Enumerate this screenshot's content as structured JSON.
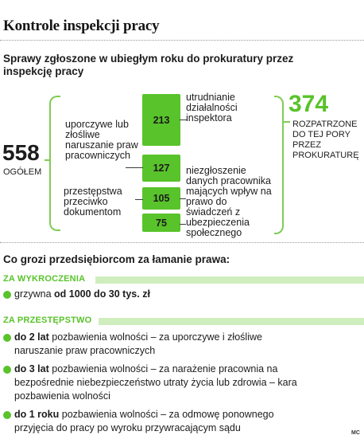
{
  "title": "Kontrole inspekcji pracy",
  "subtitle": "Sprawy zgłoszone w ubiegłym roku do prokuratury przez inspekcję pracy",
  "total": {
    "value": "558",
    "label": "OGÓŁEM"
  },
  "resolved": {
    "value": "374",
    "label": "ROZPATRZONE DO TEJ PORY PRZEZ PROKURATURĘ"
  },
  "left_labels": {
    "rights": "uporczywe lub złośliwe naruszanie praw pracowniczych",
    "documents": "przestępstwa przeciwko dokumentom"
  },
  "right_labels": {
    "obstruction": "utrudnianie działalności inspektora",
    "insurance": "niezgłoszenie danych pracownika mających wpływ na prawo do świadczeń z ubezpieczenia społecznego"
  },
  "boxes": [
    {
      "value": "213"
    },
    {
      "value": "127"
    },
    {
      "value": "105"
    },
    {
      "value": "75"
    }
  ],
  "colors": {
    "accent": "#58c32a",
    "accent_light": "#cfeebd"
  },
  "section2": {
    "heading": "Co grozi przedsiębiorcom za łamanie prawa:",
    "wykroczenia": {
      "label": "ZA WYKROCZENIA",
      "item": {
        "pre": "grzywna ",
        "bold": "od 1000 do 30 tys. zł"
      }
    },
    "przestepstwo": {
      "label": "ZA PRZESTĘPSTWO",
      "items": [
        {
          "bold": "do 2 lat",
          "line1": " pozbawienia wolności – za uporczywe i złośliwe",
          "line2": "naruszanie praw pracowniczych",
          "line3": ""
        },
        {
          "bold": "do 3 lat",
          "line1": " pozbawienia wolności – za narażenie pracownia na",
          "line2": "bezpośrednie  niebezpieczeństwo utraty życia  lub zdrowia – kara",
          "line3": "pozbawienia wolności"
        },
        {
          "bold": "do 1 roku",
          "line1": " pozbawienia wolności – za odmowę ponownego",
          "line2": "przyjęcia do pracy po wyroku przywracającym  sądu",
          "line3": ""
        }
      ]
    }
  },
  "credit": "MC"
}
